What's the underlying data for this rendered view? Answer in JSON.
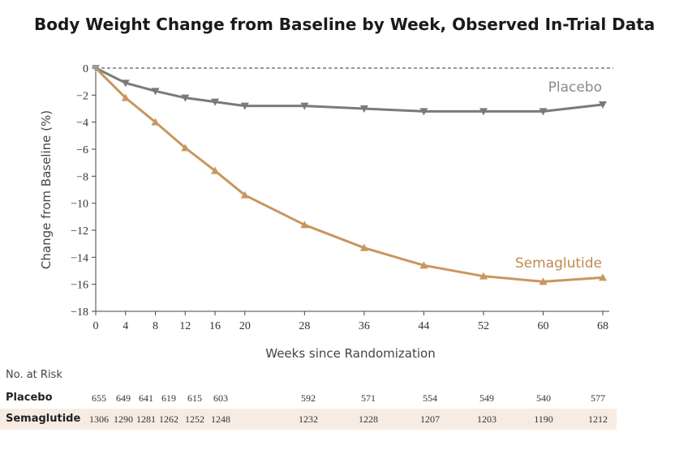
{
  "chart_data": {
    "type": "line",
    "title": "Body Weight Change from Baseline by Week, Observed In-Trial Data",
    "xlabel": "Weeks since Randomization",
    "ylabel": "Change from Baseline (%)",
    "xlim": [
      0,
      68
    ],
    "ylim": [
      -18,
      0
    ],
    "x_ticks": [
      0,
      4,
      8,
      12,
      16,
      20,
      28,
      36,
      44,
      52,
      60,
      68
    ],
    "y_ticks": [
      0,
      -2,
      -4,
      -6,
      -8,
      -10,
      -12,
      -14,
      -16,
      -18
    ],
    "reference_line": {
      "y": 0,
      "style": "dashed"
    },
    "x": [
      0,
      4,
      8,
      12,
      16,
      20,
      28,
      36,
      44,
      52,
      60,
      68
    ],
    "series": [
      {
        "name": "Placebo",
        "color": "#7a7a7a",
        "values": [
          0,
          -1.1,
          -1.7,
          -2.2,
          -2.5,
          -2.8,
          -2.8,
          -3.0,
          -3.2,
          -3.2,
          -3.2,
          -2.7
        ]
      },
      {
        "name": "Semaglutide",
        "color": "#c9965f",
        "values": [
          0,
          -2.2,
          -4.0,
          -5.9,
          -7.6,
          -9.4,
          -11.6,
          -13.3,
          -14.6,
          -15.4,
          -15.8,
          -15.5
        ]
      }
    ]
  },
  "risk_table": {
    "header": "No. at Risk",
    "rows": [
      {
        "name": "Placebo",
        "values": [
          "655",
          "649",
          "641",
          "619",
          "615",
          "603",
          "592",
          "571",
          "554",
          "549",
          "540",
          "577"
        ]
      },
      {
        "name": "Semaglutide",
        "values": [
          "1306",
          "1290",
          "1281",
          "1262",
          "1252",
          "1248",
          "1232",
          "1228",
          "1207",
          "1203",
          "1190",
          "1212"
        ]
      }
    ]
  }
}
